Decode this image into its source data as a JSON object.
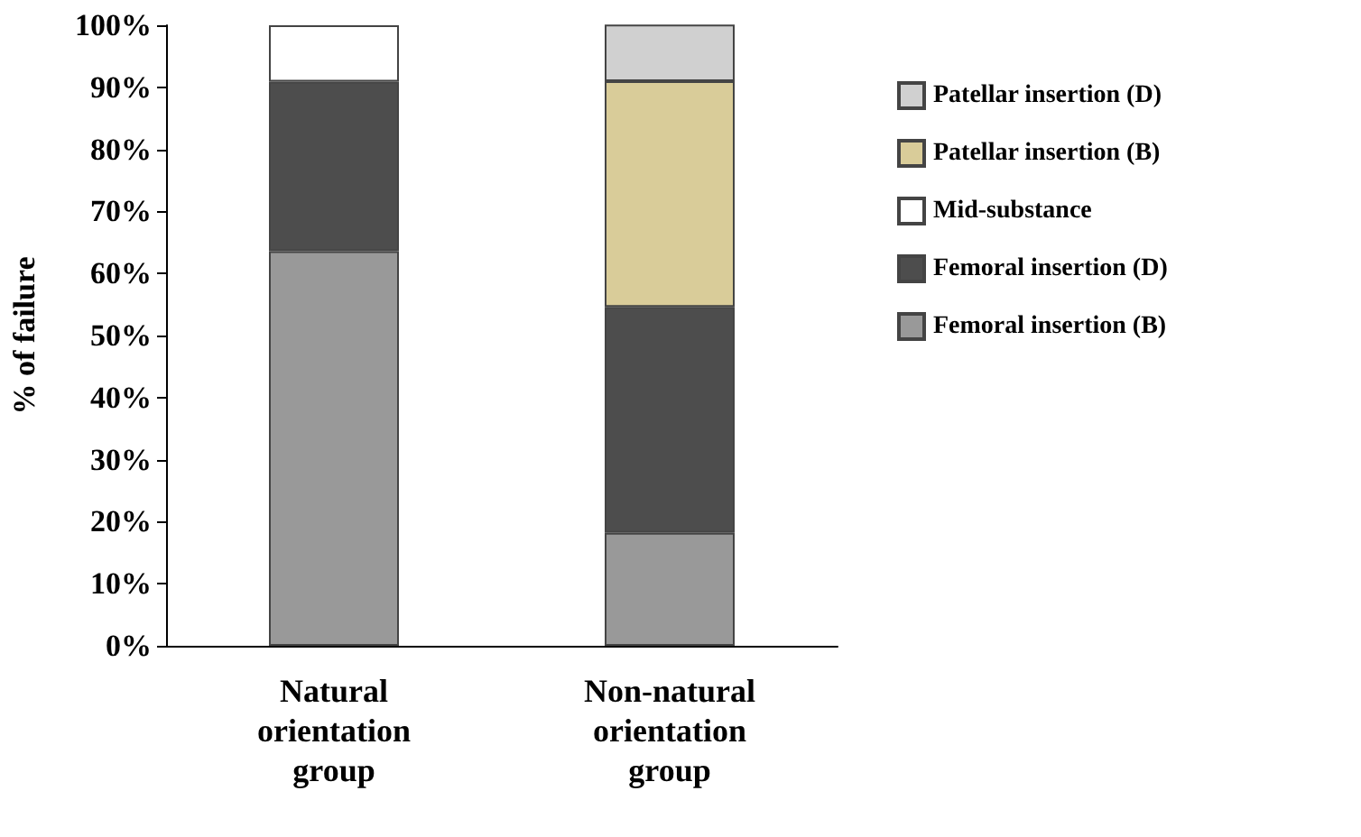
{
  "chart_data": {
    "type": "bar",
    "stacked": true,
    "ylabel": "% of failure",
    "categories": [
      "Natural\norientation\ngroup",
      "Non-natural\norientation\ngroup"
    ],
    "series": [
      {
        "name": "Femoral insertion (B)",
        "color": "#999999",
        "values": [
          63.6,
          18.2
        ]
      },
      {
        "name": "Femoral insertion (D)",
        "color": "#4d4d4d",
        "values": [
          27.3,
          36.4
        ]
      },
      {
        "name": "Mid-substance",
        "color": "#ffffff",
        "values": [
          9.1,
          null
        ]
      },
      {
        "name": "Patellar insertion (B)",
        "color": "#d9cc99",
        "values": [
          null,
          36.4
        ]
      },
      {
        "name": "Patellar insertion (D)",
        "color": "#d0d0d0",
        "values": [
          null,
          9.1
        ]
      }
    ],
    "ylim": [
      0,
      100
    ],
    "yticks": [
      {
        "value": 0,
        "label": "0%"
      },
      {
        "value": 10,
        "label": "10%"
      },
      {
        "value": 20,
        "label": "20%"
      },
      {
        "value": 30,
        "label": "30%"
      },
      {
        "value": 40,
        "label": "40%"
      },
      {
        "value": 50,
        "label": "50%"
      },
      {
        "value": 60,
        "label": "60%"
      },
      {
        "value": 70,
        "label": "70%"
      },
      {
        "value": 80,
        "label": "80%"
      },
      {
        "value": 90,
        "label": "90%"
      },
      {
        "value": 100,
        "label": "100%"
      }
    ],
    "legend": "right",
    "grid": false
  }
}
